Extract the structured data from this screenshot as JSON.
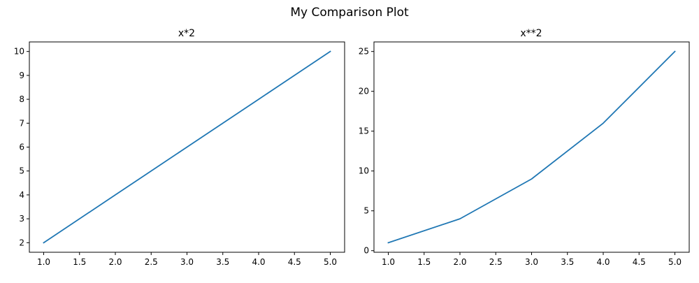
{
  "figure": {
    "suptitle": "My Comparison Plot"
  },
  "chart_data": [
    {
      "type": "line",
      "title": "x*2",
      "xlabel": "",
      "ylabel": "",
      "x": [
        1,
        2,
        3,
        4,
        5
      ],
      "series": [
        {
          "values": [
            2,
            4,
            6,
            8,
            10
          ],
          "color": "#1f77b4"
        }
      ],
      "xlim": [
        0.8,
        5.2
      ],
      "ylim": [
        1.6,
        10.4
      ],
      "xticks": [
        1.0,
        1.5,
        2.0,
        2.5,
        3.0,
        3.5,
        4.0,
        4.5,
        5.0
      ],
      "xtick_labels": [
        "1.0",
        "1.5",
        "2.0",
        "2.5",
        "3.0",
        "3.5",
        "4.0",
        "4.5",
        "5.0"
      ],
      "yticks": [
        2,
        3,
        4,
        5,
        6,
        7,
        8,
        9,
        10
      ],
      "ytick_labels": [
        "2",
        "3",
        "4",
        "5",
        "6",
        "7",
        "8",
        "9",
        "10"
      ],
      "grid": false,
      "legend": "none"
    },
    {
      "type": "line",
      "title": "x**2",
      "xlabel": "",
      "ylabel": "",
      "x": [
        1,
        2,
        3,
        4,
        5
      ],
      "series": [
        {
          "values": [
            1,
            4,
            9,
            16,
            25
          ],
          "color": "#1f77b4"
        }
      ],
      "xlim": [
        0.8,
        5.2
      ],
      "ylim": [
        -0.2,
        26.2
      ],
      "xticks": [
        1.0,
        1.5,
        2.0,
        2.5,
        3.0,
        3.5,
        4.0,
        4.5,
        5.0
      ],
      "xtick_labels": [
        "1.0",
        "1.5",
        "2.0",
        "2.5",
        "3.0",
        "3.5",
        "4.0",
        "4.5",
        "5.0"
      ],
      "yticks": [
        0,
        5,
        10,
        15,
        20,
        25
      ],
      "ytick_labels": [
        "0",
        "5",
        "10",
        "15",
        "20",
        "25"
      ],
      "grid": false,
      "legend": "none"
    }
  ]
}
